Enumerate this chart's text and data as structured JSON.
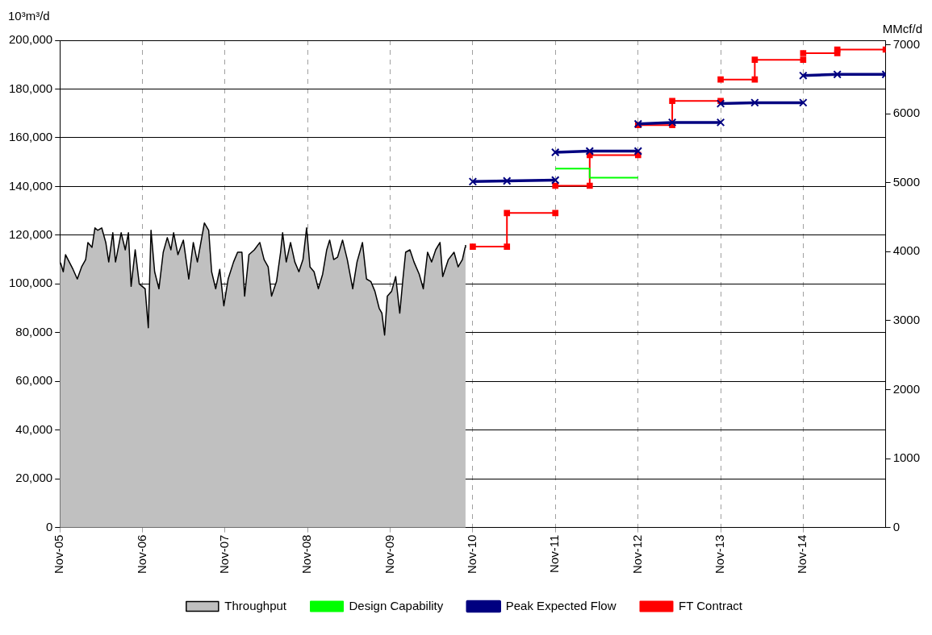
{
  "chart_data": {
    "type": "line",
    "ylabel": "10³m³/d",
    "y2label": "MMcf/d",
    "xlim": [
      "2005-11-01",
      "2015-11-01"
    ],
    "xticks": [
      {
        "value": "2005-11-01",
        "label": "Nov-05"
      },
      {
        "value": "2006-11-01",
        "label": "Nov-06"
      },
      {
        "value": "2007-11-01",
        "label": "Nov-07"
      },
      {
        "value": "2008-11-01",
        "label": "Nov-08"
      },
      {
        "value": "2009-11-01",
        "label": "Nov-09"
      },
      {
        "value": "2010-11-01",
        "label": "Nov-10"
      },
      {
        "value": "2011-11-01",
        "label": "Nov-11"
      },
      {
        "value": "2012-11-01",
        "label": "Nov-12"
      },
      {
        "value": "2013-11-01",
        "label": "Nov-13"
      },
      {
        "value": "2014-11-01",
        "label": "Nov-14"
      }
    ],
    "ylim": [
      0,
      200000
    ],
    "yticks": [
      0,
      {
        "value": 20000,
        "label": "20,000"
      },
      {
        "value": 40000,
        "label": "40,000"
      },
      {
        "value": 60000,
        "label": "60,000"
      },
      {
        "value": 80000,
        "label": "80,000"
      },
      {
        "value": 100000,
        "label": "100,000"
      },
      {
        "value": 120000,
        "label": "120,000"
      },
      {
        "value": 140000,
        "label": "140,000"
      },
      {
        "value": 160000,
        "label": "160,000"
      },
      {
        "value": 180000,
        "label": "180,000"
      },
      {
        "value": 200000,
        "label": "200,000"
      }
    ],
    "y2lim": [
      0,
      7063
    ],
    "y2ticks": [
      0,
      1000,
      2000,
      3000,
      4000,
      5000,
      6000,
      7000
    ],
    "grid": true,
    "legend": "bottom",
    "series": [
      {
        "name": "Throughput",
        "type": "area",
        "color": "#c0c0c0",
        "marker": "none",
        "x": [
          "2005-11-01",
          "2005-11-04",
          "2005-11-16",
          "2005-11-26",
          "2005-12-29",
          "2006-01-17",
          "2006-02-05",
          "2006-02-23",
          "2006-03-05",
          "2006-03-23",
          "2006-04-05",
          "2006-04-17",
          "2006-05-05",
          "2006-05-23",
          "2006-06-05",
          "2006-06-23",
          "2006-07-05",
          "2006-07-30",
          "2006-08-17",
          "2006-08-31",
          "2006-09-12",
          "2006-09-30",
          "2006-10-18",
          "2006-11-13",
          "2006-11-27",
          "2006-12-09",
          "2006-12-25",
          "2007-01-13",
          "2007-02-01",
          "2007-02-19",
          "2007-03-07",
          "2007-03-19",
          "2007-04-07",
          "2007-05-01",
          "2007-05-25",
          "2007-06-14",
          "2007-07-02",
          "2007-08-02",
          "2007-08-21",
          "2007-09-03",
          "2007-09-21",
          "2007-10-09",
          "2007-10-27",
          "2007-11-15",
          "2007-12-09",
          "2007-12-27",
          "2008-01-15",
          "2008-01-27",
          "2008-02-15",
          "2008-03-10",
          "2008-04-03",
          "2008-04-22",
          "2008-05-10",
          "2008-05-25",
          "2008-06-16",
          "2008-07-04",
          "2008-07-13",
          "2008-07-29",
          "2008-08-17",
          "2008-09-05",
          "2008-09-23",
          "2008-10-11",
          "2008-10-27",
          "2008-11-11",
          "2008-11-29",
          "2008-12-18",
          "2009-01-06",
          "2009-01-24",
          "2009-02-06",
          "2009-02-24",
          "2009-03-13",
          "2009-04-04",
          "2009-04-25",
          "2009-05-19",
          "2009-06-07",
          "2009-07-01",
          "2009-07-19",
          "2009-08-07",
          "2009-08-25",
          "2009-09-13",
          "2009-09-25",
          "2009-10-07",
          "2009-10-19",
          "2009-11-07",
          "2009-11-25",
          "2009-12-13",
          "2009-12-27",
          "2010-01-08",
          "2010-01-27",
          "2010-02-14",
          "2010-03-09",
          "2010-03-27",
          "2010-04-15",
          "2010-05-03",
          "2010-05-21",
          "2010-06-09",
          "2010-06-21",
          "2010-07-16",
          "2010-08-10",
          "2010-08-28",
          "2010-09-16",
          "2010-09-28",
          "2010-09-30"
        ],
        "values": [
          108000,
          108600,
          105000,
          112000,
          106000,
          102000,
          107000,
          110000,
          117000,
          115000,
          123000,
          122000,
          123000,
          117000,
          109000,
          121000,
          109000,
          121000,
          114000,
          121000,
          99000,
          114000,
          100000,
          98000,
          82000,
          122000,
          105000,
          98000,
          113000,
          119000,
          114000,
          121000,
          112000,
          118000,
          102000,
          117000,
          109000,
          125000,
          122000,
          105000,
          98000,
          106000,
          91000,
          102000,
          109000,
          113000,
          113000,
          95000,
          112000,
          114000,
          117000,
          110000,
          107000,
          95000,
          101000,
          113000,
          121000,
          109000,
          117000,
          109000,
          105000,
          110000,
          123000,
          107000,
          105000,
          98000,
          104000,
          114000,
          118000,
          110000,
          111000,
          118000,
          110000,
          98000,
          109000,
          117000,
          102000,
          101000,
          97000,
          90000,
          88000,
          79000,
          95000,
          97000,
          103000,
          88000,
          102000,
          113000,
          114000,
          109000,
          104000,
          98000,
          113000,
          109000,
          114000,
          117000,
          103000,
          110000,
          113000,
          107000,
          110000,
          115000,
          116000
        ]
      },
      {
        "name": "Design Capability",
        "color": "#00ff00",
        "marker": "none",
        "x": [
          "2011-11-01",
          "2012-04-01",
          "2012-04-01",
          "2012-11-01"
        ],
        "values": [
          147300,
          147300,
          143600,
          143600
        ]
      },
      {
        "name": "Peak Expected Flow",
        "color": "#000080",
        "marker": "cross",
        "x": [
          "2010-11-01",
          "2011-04-01",
          "2011-11-01",
          null,
          "2011-11-01",
          "2012-04-01",
          "2012-11-01",
          null,
          "2012-11-01",
          "2013-04-01",
          "2013-11-01",
          null,
          "2013-11-01",
          "2014-04-01",
          "2014-11-01",
          null,
          "2014-11-01",
          "2015-04-01",
          "2015-11-01"
        ],
        "values": [
          142000,
          142300,
          142600,
          null,
          154000,
          154500,
          154500,
          null,
          165700,
          166300,
          166300,
          null,
          174000,
          174400,
          174400,
          null,
          185500,
          186000,
          186000
        ]
      },
      {
        "name": "FT Contract",
        "color": "#ff0000",
        "marker": "square",
        "x": [
          "2010-11-01",
          "2011-04-01",
          "2011-04-01",
          "2011-11-01",
          null,
          "2011-11-01",
          "2012-04-01",
          "2012-04-01",
          "2012-11-01",
          null,
          "2012-11-01",
          "2013-04-01",
          "2013-04-01",
          "2013-11-01",
          null,
          "2013-11-01",
          "2014-04-01",
          "2014-04-01",
          "2014-11-01",
          null,
          "2014-11-01",
          "2015-04-01",
          "2015-04-01",
          "2015-11-01"
        ],
        "values": [
          115300,
          115300,
          129100,
          129100,
          null,
          140300,
          140300,
          152900,
          152900,
          null,
          165200,
          165200,
          175100,
          175100,
          null,
          183900,
          183900,
          192000,
          192000,
          null,
          194700,
          194700,
          196200,
          196200
        ]
      }
    ]
  }
}
